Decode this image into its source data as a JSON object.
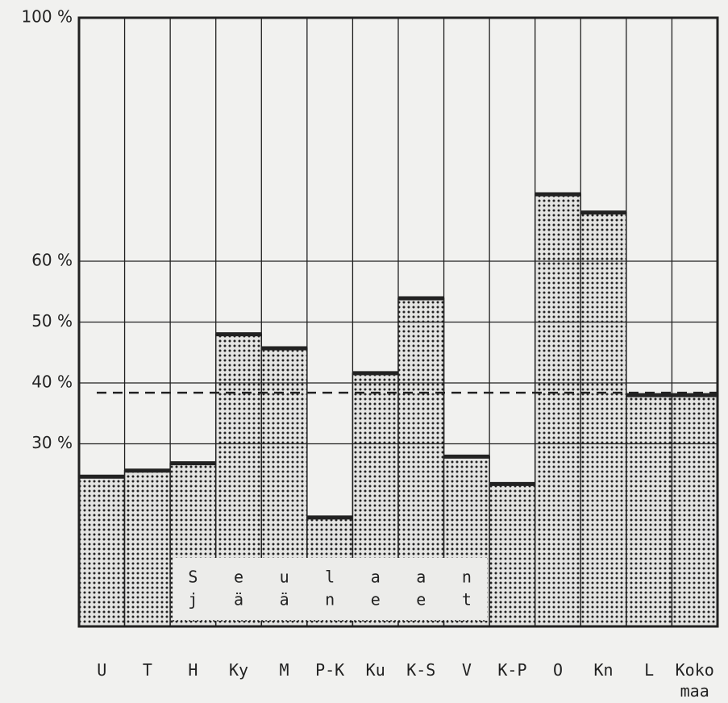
{
  "chart_data": {
    "type": "bar",
    "categories": [
      "U",
      "T",
      "H",
      "Ky",
      "M",
      "P-K",
      "Ku",
      "K-S",
      "V",
      "K-P",
      "O",
      "Kn",
      "L",
      "Koko maa"
    ],
    "values": [
      24.6,
      25.6,
      26.8,
      48,
      45.7,
      17.9,
      41.6,
      53.9,
      27.9,
      23.4,
      71,
      68,
      38,
      38
    ],
    "ylim": [
      0,
      100
    ],
    "yticks": [
      {
        "value": 30,
        "label": "30 %"
      },
      {
        "value": 40,
        "label": "40 %"
      },
      {
        "value": 50,
        "label": "50 %"
      },
      {
        "value": 60,
        "label": "60 %"
      },
      {
        "value": 100,
        "label": "100 %"
      }
    ],
    "grid": true,
    "reference_line": 38.4,
    "annotation": [
      "Seulaan",
      "jääneet"
    ],
    "color": "#222222"
  }
}
